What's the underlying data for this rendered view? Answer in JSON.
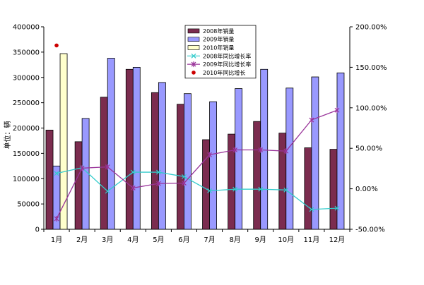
{
  "chart_data": {
    "type": "bar",
    "categories": [
      "1月",
      "2月",
      "3月",
      "4月",
      "5月",
      "6月",
      "7月",
      "8月",
      "9月",
      "10月",
      "11月",
      "12月"
    ],
    "series": [
      {
        "name": "2008年销量",
        "kind": "bar",
        "axis": "left",
        "color": "#7B2C4F",
        "values": [
          196000,
          173000,
          261000,
          316000,
          270000,
          247000,
          177000,
          188000,
          213000,
          190000,
          161000,
          158000
        ]
      },
      {
        "name": "2009年销量",
        "kind": "bar",
        "axis": "left",
        "color": "#9999FF",
        "values": [
          125000,
          219000,
          338000,
          320000,
          290000,
          268000,
          252000,
          278000,
          316000,
          279000,
          301000,
          309000
        ]
      },
      {
        "name": "2010年销量",
        "kind": "bar",
        "axis": "left",
        "color": "#FFFFCC",
        "values": [
          347000,
          null,
          null,
          null,
          null,
          null,
          null,
          null,
          null,
          null,
          null,
          null
        ]
      },
      {
        "name": "2008年同比增长率",
        "kind": "line",
        "axis": "right",
        "color": "#33CCCC",
        "marker": "x",
        "values": [
          19.0,
          26.0,
          -3.0,
          20.5,
          20.5,
          15.0,
          -2.5,
          -0.5,
          -0.5,
          -1.5,
          -25.5,
          -24.0
        ]
      },
      {
        "name": "2009年同比增长率",
        "kind": "line",
        "axis": "right",
        "color": "#993399",
        "marker": "*",
        "values": [
          -37.0,
          25.5,
          27.0,
          1.0,
          6.5,
          7.0,
          42.0,
          48.0,
          48.0,
          46.5,
          85.0,
          97.0
        ]
      },
      {
        "name": "2010年同比增长",
        "kind": "point",
        "axis": "right",
        "color": "#CC0000",
        "marker": "dot",
        "values": [
          177.0,
          null,
          null,
          null,
          null,
          null,
          null,
          null,
          null,
          null,
          null,
          null
        ]
      }
    ],
    "ylim_left": [
      0,
      400000
    ],
    "yticks_left": [
      0,
      50000,
      100000,
      150000,
      200000,
      250000,
      300000,
      350000,
      400000
    ],
    "ylim_right": [
      -50,
      200
    ],
    "yticks_right": [
      "-50.00%",
      "0.00%",
      "50.00%",
      "100.00%",
      "150.00%",
      "200.00%"
    ],
    "ylabel": "单位：辆",
    "legend_position": "top-center",
    "grid": false
  }
}
